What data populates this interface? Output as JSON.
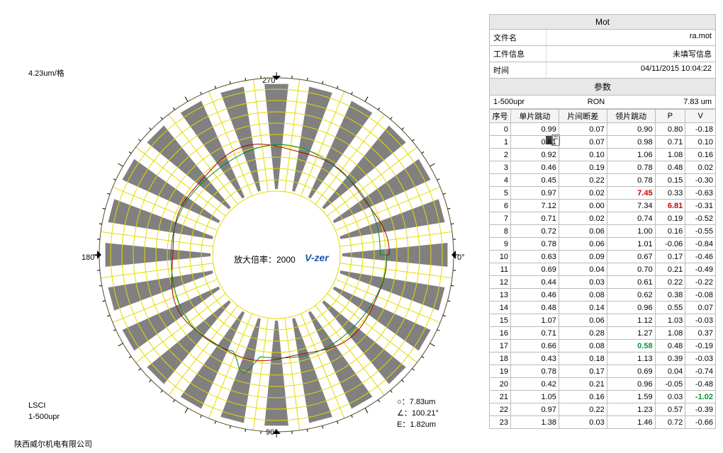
{
  "chart": {
    "scale_label": "4.23um/格",
    "magnification": "放大倍率：2000",
    "watermark": "V-zer",
    "deg_top": "270°",
    "deg_right": "0°",
    "deg_bottom": "90°",
    "deg_left": "180°",
    "outer_radius": 250,
    "inner_hole": 90,
    "num_spokes": 24,
    "spoke_color": "#808080",
    "grid_color": "#e6d900",
    "trace_color": "#aa0000",
    "overlay_color": "#008833",
    "background": "#ffffff",
    "tick_color": "#000000",
    "grid_rings": 10
  },
  "bottom_left": {
    "l1": "LSCI",
    "l2": "1-500upr"
  },
  "bottom_right": {
    "l1": "○：7.83um",
    "l2": "∠：100.21°",
    "l3": "E：1.82um"
  },
  "footer": "陕西威尔机电有限公司",
  "panel": {
    "title": "Mot",
    "info": [
      {
        "k": "文件名",
        "v": "ra.mot"
      },
      {
        "k": "工件信息",
        "v": "未填写信息"
      },
      {
        "k": "时间",
        "v": "04/11/2015 10:04:22"
      }
    ],
    "param_header": "参数",
    "param_sub": {
      "c1": "1-500upr",
      "c2": "RON",
      "c3": "7.83 um"
    },
    "columns": [
      "序号",
      "单片跳动",
      "片间断差",
      "领片跳动",
      "P",
      "V"
    ],
    "rows": [
      [
        0,
        "0.99",
        "0.07",
        "0.90",
        "0.80",
        "-0.18"
      ],
      [
        1,
        "0.61",
        "0.07",
        "0.98",
        "0.71",
        "0.10"
      ],
      [
        2,
        "0.92",
        "0.10",
        "1.06",
        "1.08",
        "0.16"
      ],
      [
        3,
        "0.46",
        "0.19",
        "0.78",
        "0.48",
        "0.02"
      ],
      [
        4,
        "0.45",
        "0.22",
        "0.78",
        "0.15",
        "-0.30"
      ],
      [
        5,
        "0.97",
        "0.02",
        {
          "t": "7.45",
          "c": "red"
        },
        "0.33",
        "-0.63"
      ],
      [
        6,
        "7.12",
        "0.00",
        "7.34",
        {
          "t": "6.81",
          "c": "red"
        },
        "-0.31"
      ],
      [
        7,
        "0.71",
        "0.02",
        "0.74",
        "0.19",
        "-0.52"
      ],
      [
        8,
        "0.72",
        "0.06",
        "1.00",
        "0.16",
        "-0.55"
      ],
      [
        9,
        "0.78",
        "0.06",
        "1.01",
        "-0.06",
        "-0.84"
      ],
      [
        10,
        "0.63",
        "0.09",
        "0.67",
        "0.17",
        "-0.46"
      ],
      [
        11,
        "0.69",
        "0.04",
        "0.70",
        "0.21",
        "-0.49"
      ],
      [
        12,
        "0.44",
        "0.03",
        "0.61",
        "0.22",
        "-0.22"
      ],
      [
        13,
        "0.46",
        "0.08",
        "0.62",
        "0.38",
        "-0.08"
      ],
      [
        14,
        "0.48",
        "0.14",
        "0.96",
        "0.55",
        "0.07"
      ],
      [
        15,
        "1.07",
        "0.06",
        "1.12",
        "1.03",
        "-0.03"
      ],
      [
        16,
        "0.71",
        "0.28",
        "1.27",
        "1.08",
        "0.37"
      ],
      [
        17,
        "0.66",
        "0.08",
        {
          "t": "0.58",
          "c": "green"
        },
        "0.48",
        "-0.19"
      ],
      [
        18,
        "0.43",
        "0.18",
        "1.13",
        "0.39",
        "-0.03"
      ],
      [
        19,
        "0.78",
        "0.17",
        "0.69",
        "0.04",
        "-0.74"
      ],
      [
        20,
        "0.42",
        "0.21",
        "0.96",
        "-0.05",
        "-0.48"
      ],
      [
        21,
        "1.05",
        "0.16",
        "1.59",
        "0.03",
        {
          "t": "-1.02",
          "c": "green"
        }
      ],
      [
        22,
        "0.97",
        "0.22",
        "1.23",
        "0.57",
        "-0.39"
      ],
      [
        23,
        "1.38",
        "0.03",
        "1.46",
        "0.72",
        "-0.66"
      ]
    ]
  }
}
